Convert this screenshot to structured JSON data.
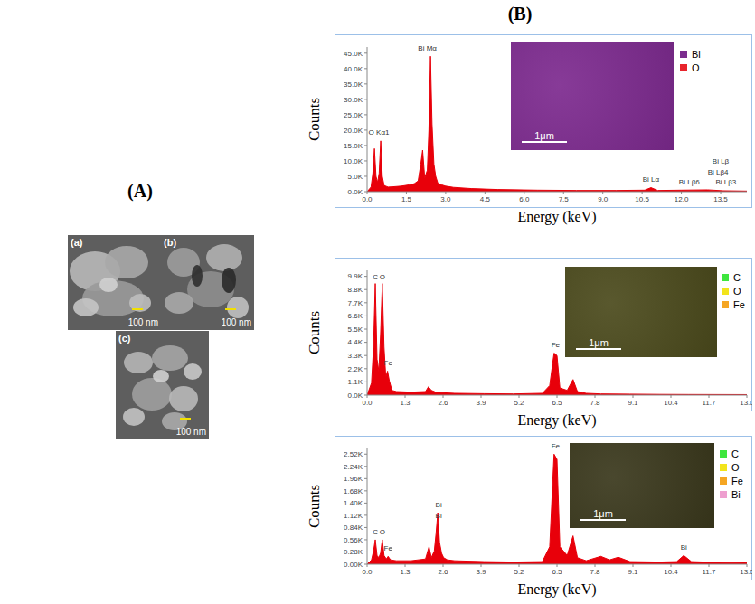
{
  "figure": {
    "panel_labels": [
      "(A)",
      "(B)"
    ],
    "sem_images": [
      {
        "label": "(a)",
        "scale_bar": "100 nm"
      },
      {
        "label": "(b)",
        "scale_bar": "100 nm"
      },
      {
        "label": "(c)",
        "scale_bar": "100 nm"
      }
    ]
  },
  "chart_data": [
    {
      "type": "area",
      "x_label": "Energy (keV)",
      "y_label": "Counts",
      "color": "#e8000a",
      "x": [
        0,
        0.15,
        0.22,
        0.28,
        0.34,
        0.4,
        0.46,
        0.52,
        0.58,
        0.65,
        0.8,
        1.0,
        1.3,
        1.6,
        1.8,
        1.95,
        2.05,
        2.12,
        2.2,
        2.3,
        2.36,
        2.42,
        2.48,
        2.55,
        2.62,
        2.7,
        2.85,
        3.0,
        3.3,
        4.0,
        5.0,
        6.5,
        8.0,
        9.5,
        10.6,
        10.84,
        11.1,
        12.0,
        13.0,
        13.6,
        14.5
      ],
      "values": [
        0,
        1500,
        6000,
        14000,
        5000,
        3000,
        6000,
        16500,
        5000,
        2000,
        1500,
        1600,
        1800,
        2200,
        2600,
        3500,
        9000,
        13500,
        4500,
        7000,
        20000,
        44000,
        22000,
        9000,
        5000,
        2800,
        2200,
        1800,
        1400,
        1000,
        700,
        500,
        400,
        400,
        500,
        1300,
        400,
        500,
        600,
        300,
        200
      ],
      "xlim": [
        0,
        14.5
      ],
      "xticks": [
        {
          "value": 0,
          "label": "0.0"
        },
        1.5,
        {
          "value": 3,
          "label": "3.0"
        },
        4.5,
        {
          "value": 6,
          "label": "6.0"
        },
        7.5,
        {
          "value": 9,
          "label": "9.0"
        },
        10.5,
        {
          "value": 12,
          "label": "12.0"
        },
        13.5
      ],
      "ylim": [
        0,
        47000
      ],
      "yticks": [
        {
          "value": 0,
          "label": "0.0K"
        },
        {
          "value": 5000,
          "label": "5.0K"
        },
        {
          "value": 10000,
          "label": "10.0K"
        },
        {
          "value": 15000,
          "label": "15.0K"
        },
        {
          "value": 20000,
          "label": "20.0K"
        },
        {
          "value": 25000,
          "label": "25.0K"
        },
        {
          "value": 30000,
          "label": "30.0K"
        },
        {
          "value": 35000,
          "label": "35.0K"
        },
        {
          "value": 40000,
          "label": "40.0K"
        },
        {
          "value": 45000,
          "label": "45.0K"
        }
      ],
      "annotations": [
        {
          "text": "O Kα1",
          "x": 0.45,
          "y": 17000
        },
        {
          "text": "Bi Mα",
          "x": 2.3,
          "y": 44500
        },
        {
          "text": "Bi Lα",
          "x": 10.84,
          "y": 1800
        },
        {
          "text": "Bi Lβ",
          "x": 13.5,
          "y": 7500
        },
        {
          "text": "Bi Lβ4",
          "x": 13.4,
          "y": 4000
        },
        {
          "text": "Bi Lβ6",
          "x": 12.3,
          "y": 1000
        },
        {
          "text": "Bi Lβ3",
          "x": 13.7,
          "y": 1000
        }
      ],
      "map": {
        "scale_bar": "1μm",
        "elements": [
          {
            "name": "Bi",
            "color": "#7b2d8e"
          },
          {
            "name": "O",
            "color": "#e8242c"
          }
        ]
      }
    },
    {
      "type": "area",
      "x_label": "Energy (keV)",
      "y_label": "Counts",
      "color": "#e8000a",
      "x": [
        0,
        0.15,
        0.22,
        0.28,
        0.34,
        0.4,
        0.46,
        0.52,
        0.58,
        0.64,
        0.7,
        0.76,
        0.85,
        1.0,
        1.5,
        2.0,
        2.1,
        2.2,
        2.35,
        2.6,
        3.0,
        4.0,
        5.0,
        6.0,
        6.25,
        6.4,
        6.5,
        6.6,
        6.85,
        7.05,
        7.2,
        7.5,
        8.0,
        9.0,
        10.0,
        11.0,
        13.0
      ],
      "values": [
        0,
        1000,
        4000,
        9300,
        3000,
        2000,
        5000,
        9300,
        4000,
        1500,
        2000,
        1200,
        400,
        300,
        250,
        300,
        700,
        400,
        250,
        200,
        150,
        120,
        100,
        150,
        800,
        3500,
        3300,
        600,
        400,
        1300,
        300,
        150,
        100,
        80,
        60,
        50,
        40
      ],
      "xlim": [
        0,
        13
      ],
      "xticks": [
        {
          "value": 0,
          "label": "0.0"
        },
        1.3,
        2.6,
        3.9,
        5.2,
        6.5,
        7.8,
        9.1,
        10.4,
        11.7,
        {
          "value": 13,
          "label": "13.0"
        }
      ],
      "ylim": [
        0,
        10400
      ],
      "yticks": [
        {
          "value": 0,
          "label": "0.0K"
        },
        {
          "value": 1100,
          "label": "1.1K"
        },
        {
          "value": 2200,
          "label": "2.2K"
        },
        {
          "value": 3300,
          "label": "3.3K"
        },
        {
          "value": 4400,
          "label": "4.4K"
        },
        {
          "value": 5500,
          "label": "5.5K"
        },
        {
          "value": 6600,
          "label": "6.6K"
        },
        {
          "value": 7700,
          "label": "7.7K"
        },
        {
          "value": 8800,
          "label": "8.8K"
        },
        {
          "value": 9900,
          "label": "9.9K"
        }
      ],
      "annotations": [
        {
          "text": "C",
          "x": 0.28,
          "y": 9300
        },
        {
          "text": "O",
          "x": 0.52,
          "y": 9300
        },
        {
          "text": "Fe",
          "x": 0.72,
          "y": 2100
        },
        {
          "text": "Fe",
          "x": 6.45,
          "y": 3600
        }
      ],
      "map": {
        "scale_bar": "1μm",
        "elements": [
          {
            "name": "C",
            "color": "#3ee63e"
          },
          {
            "name": "O",
            "color": "#f2e41c"
          },
          {
            "name": "Fe",
            "color": "#f5a623"
          }
        ]
      }
    },
    {
      "type": "area",
      "x_label": "Energy (keV)",
      "y_label": "Counts",
      "color": "#e8000a",
      "x": [
        0,
        0.15,
        0.22,
        0.28,
        0.34,
        0.4,
        0.46,
        0.52,
        0.58,
        0.66,
        0.72,
        0.8,
        1.0,
        1.5,
        2.0,
        2.12,
        2.2,
        2.3,
        2.36,
        2.42,
        2.48,
        2.55,
        2.62,
        2.75,
        3.0,
        4.0,
        5.0,
        6.0,
        6.25,
        6.4,
        6.5,
        6.6,
        6.85,
        7.05,
        7.2,
        7.5,
        8.0,
        8.3,
        8.6,
        9.0,
        10.0,
        10.6,
        10.84,
        11.1,
        12.0,
        13.0
      ],
      "values": [
        0,
        100,
        300,
        560,
        200,
        150,
        250,
        560,
        200,
        120,
        180,
        100,
        80,
        80,
        120,
        400,
        150,
        300,
        700,
        1180,
        500,
        250,
        150,
        100,
        80,
        60,
        50,
        60,
        400,
        2520,
        2400,
        400,
        200,
        650,
        150,
        80,
        180,
        100,
        160,
        60,
        50,
        60,
        200,
        60,
        40,
        30
      ],
      "xlim": [
        0,
        13
      ],
      "xticks": [
        {
          "value": 0,
          "label": "0.0"
        },
        1.3,
        2.6,
        3.9,
        5.2,
        6.5,
        7.8,
        9.1,
        10.4,
        11.7,
        {
          "value": 13,
          "label": "13.0"
        }
      ],
      "ylim": [
        0,
        2650
      ],
      "yticks": [
        {
          "value": 0,
          "label": "0.00K"
        },
        {
          "value": 280,
          "label": "0.28K"
        },
        {
          "value": 560,
          "label": "0.56K"
        },
        {
          "value": 840,
          "label": "0.84K"
        },
        {
          "value": 1120,
          "label": "1.12K"
        },
        {
          "value": 1400,
          "label": "1.40K"
        },
        {
          "value": 1680,
          "label": "1.68K"
        },
        {
          "value": 1960,
          "label": "1.96K"
        },
        {
          "value": 2240,
          "label": "2.24K"
        },
        {
          "value": 2520,
          "label": "2.52K"
        }
      ],
      "annotations": [
        {
          "text": "C",
          "x": 0.28,
          "y": 580
        },
        {
          "text": "O",
          "x": 0.52,
          "y": 580
        },
        {
          "text": "Fe",
          "x": 0.72,
          "y": 200
        },
        {
          "text": "Bi",
          "x": 2.45,
          "y": 1200
        },
        {
          "text": "Bi",
          "x": 2.45,
          "y": 950
        },
        {
          "text": "Fe",
          "x": 6.45,
          "y": 2540
        },
        {
          "text": "Bi",
          "x": 10.84,
          "y": 220
        }
      ],
      "map": {
        "scale_bar": "1μm",
        "elements": [
          {
            "name": "C",
            "color": "#3ee63e"
          },
          {
            "name": "O",
            "color": "#f2e41c"
          },
          {
            "name": "Fe",
            "color": "#f5a623"
          },
          {
            "name": "Bi",
            "color": "#ee9fcf"
          }
        ]
      }
    }
  ]
}
